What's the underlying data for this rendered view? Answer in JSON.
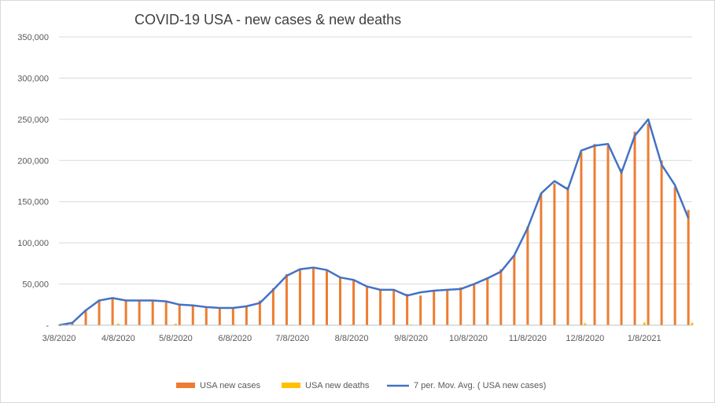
{
  "chart_data": {
    "type": "bar+line",
    "title": "COVID-19 USA - new cases & new deaths",
    "xlabel": "",
    "ylabel": "",
    "ylim": [
      0,
      350000
    ],
    "y_ticks": [
      "-",
      "50,000",
      "100,000",
      "150,000",
      "200,000",
      "250,000",
      "300,000",
      "350,000"
    ],
    "y_tick_values": [
      0,
      50000,
      100000,
      150000,
      200000,
      250000,
      300000,
      350000
    ],
    "x_tick_labels": [
      "3/8/2020",
      "4/8/2020",
      "5/8/2020",
      "6/8/2020",
      "7/8/2020",
      "8/8/2020",
      "9/8/2020",
      "10/8/2020",
      "11/8/2020",
      "12/8/2020",
      "1/8/2021"
    ],
    "x_start": "3/8/2020",
    "x_end": "2/2/2021",
    "grid": true,
    "legend_position": "bottom",
    "colors": {
      "cases": "#ED7D31",
      "deaths": "#FFC000",
      "moving_avg": "#4472C4"
    },
    "series": [
      {
        "name": "USA new cases",
        "type": "bar",
        "x": [
          "3/8/2020",
          "3/15/2020",
          "3/22/2020",
          "3/29/2020",
          "4/5/2020",
          "4/12/2020",
          "4/19/2020",
          "4/26/2020",
          "5/3/2020",
          "5/10/2020",
          "5/17/2020",
          "5/24/2020",
          "5/31/2020",
          "6/7/2020",
          "6/14/2020",
          "6/21/2020",
          "6/28/2020",
          "7/5/2020",
          "7/12/2020",
          "7/19/2020",
          "7/26/2020",
          "8/2/2020",
          "8/9/2020",
          "8/16/2020",
          "8/23/2020",
          "8/30/2020",
          "9/6/2020",
          "9/13/2020",
          "9/20/2020",
          "9/27/2020",
          "10/4/2020",
          "10/11/2020",
          "10/18/2020",
          "10/25/2020",
          "11/1/2020",
          "11/8/2020",
          "11/15/2020",
          "11/22/2020",
          "11/29/2020",
          "12/6/2020",
          "12/13/2020",
          "12/20/2020",
          "12/27/2020",
          "1/3/2021",
          "1/10/2021",
          "1/17/2021",
          "1/24/2021",
          "1/31/2021"
        ],
        "values": [
          500,
          4000,
          19000,
          31000,
          33000,
          30000,
          30000,
          31000,
          29000,
          25000,
          24000,
          22000,
          21000,
          21000,
          23000,
          30000,
          45000,
          62000,
          68000,
          70000,
          66000,
          58000,
          55000,
          48000,
          43000,
          42000,
          38000,
          36000,
          42000,
          43000,
          46000,
          50000,
          58000,
          68000,
          85000,
          120000,
          160000,
          172000,
          168000,
          210000,
          220000,
          218000,
          190000,
          235000,
          245000,
          200000,
          168000,
          140000
        ]
      },
      {
        "name": "USA new deaths",
        "type": "bar",
        "x": [
          "3/8/2020",
          "4/8/2020",
          "5/8/2020",
          "6/8/2020",
          "7/8/2020",
          "8/8/2020",
          "9/8/2020",
          "10/8/2020",
          "11/8/2020",
          "12/8/2020",
          "1/8/2021",
          "2/2/2021"
        ],
        "values": [
          10,
          2000,
          1800,
          800,
          700,
          1100,
          800,
          700,
          1100,
          2400,
          3400,
          3000
        ]
      },
      {
        "name": "7 per. Mov. Avg. ( USA new cases)",
        "type": "line",
        "x": [
          "3/8/2020",
          "3/15/2020",
          "3/22/2020",
          "3/29/2020",
          "4/5/2020",
          "4/12/2020",
          "4/19/2020",
          "4/26/2020",
          "5/3/2020",
          "5/10/2020",
          "5/17/2020",
          "5/24/2020",
          "5/31/2020",
          "6/7/2020",
          "6/14/2020",
          "6/21/2020",
          "6/28/2020",
          "7/5/2020",
          "7/12/2020",
          "7/19/2020",
          "7/26/2020",
          "8/2/2020",
          "8/9/2020",
          "8/16/2020",
          "8/23/2020",
          "8/30/2020",
          "9/6/2020",
          "9/13/2020",
          "9/20/2020",
          "9/27/2020",
          "10/4/2020",
          "10/11/2020",
          "10/18/2020",
          "10/25/2020",
          "11/1/2020",
          "11/8/2020",
          "11/15/2020",
          "11/22/2020",
          "11/29/2020",
          "12/6/2020",
          "12/13/2020",
          "12/20/2020",
          "12/27/2020",
          "1/3/2021",
          "1/10/2021",
          "1/17/2021",
          "1/24/2021",
          "1/31/2021"
        ],
        "values": [
          0,
          3000,
          18000,
          30000,
          33000,
          30000,
          30000,
          30000,
          29000,
          25000,
          24000,
          22000,
          21000,
          21000,
          23000,
          27000,
          43000,
          60000,
          68000,
          70000,
          67000,
          58000,
          55000,
          47000,
          43000,
          43000,
          36000,
          40000,
          42000,
          43000,
          44000,
          50000,
          57000,
          65000,
          85000,
          118000,
          160000,
          175000,
          165000,
          212000,
          218000,
          220000,
          185000,
          230000,
          250000,
          195000,
          170000,
          130000
        ]
      }
    ]
  }
}
